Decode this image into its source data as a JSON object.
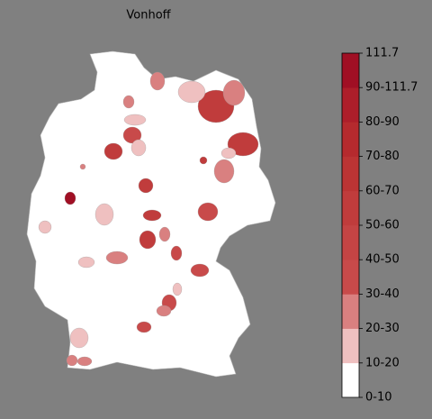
{
  "map": {
    "title": "Vonhoff",
    "colorbar": {
      "labels": [
        "0-10",
        "10-20",
        "20-30",
        "30-40",
        "40-50",
        "50-60",
        "60-70",
        "70-80",
        "80-90",
        "90-111.7",
        "111.7"
      ],
      "colors": [
        "#ffffff",
        "#efc0c0",
        "#d98080",
        "#c84a4a",
        "#c44444",
        "#c03c3c",
        "#bb3434",
        "#b52a2e",
        "#ad1e2a",
        "#a00f24"
      ]
    }
  }
}
